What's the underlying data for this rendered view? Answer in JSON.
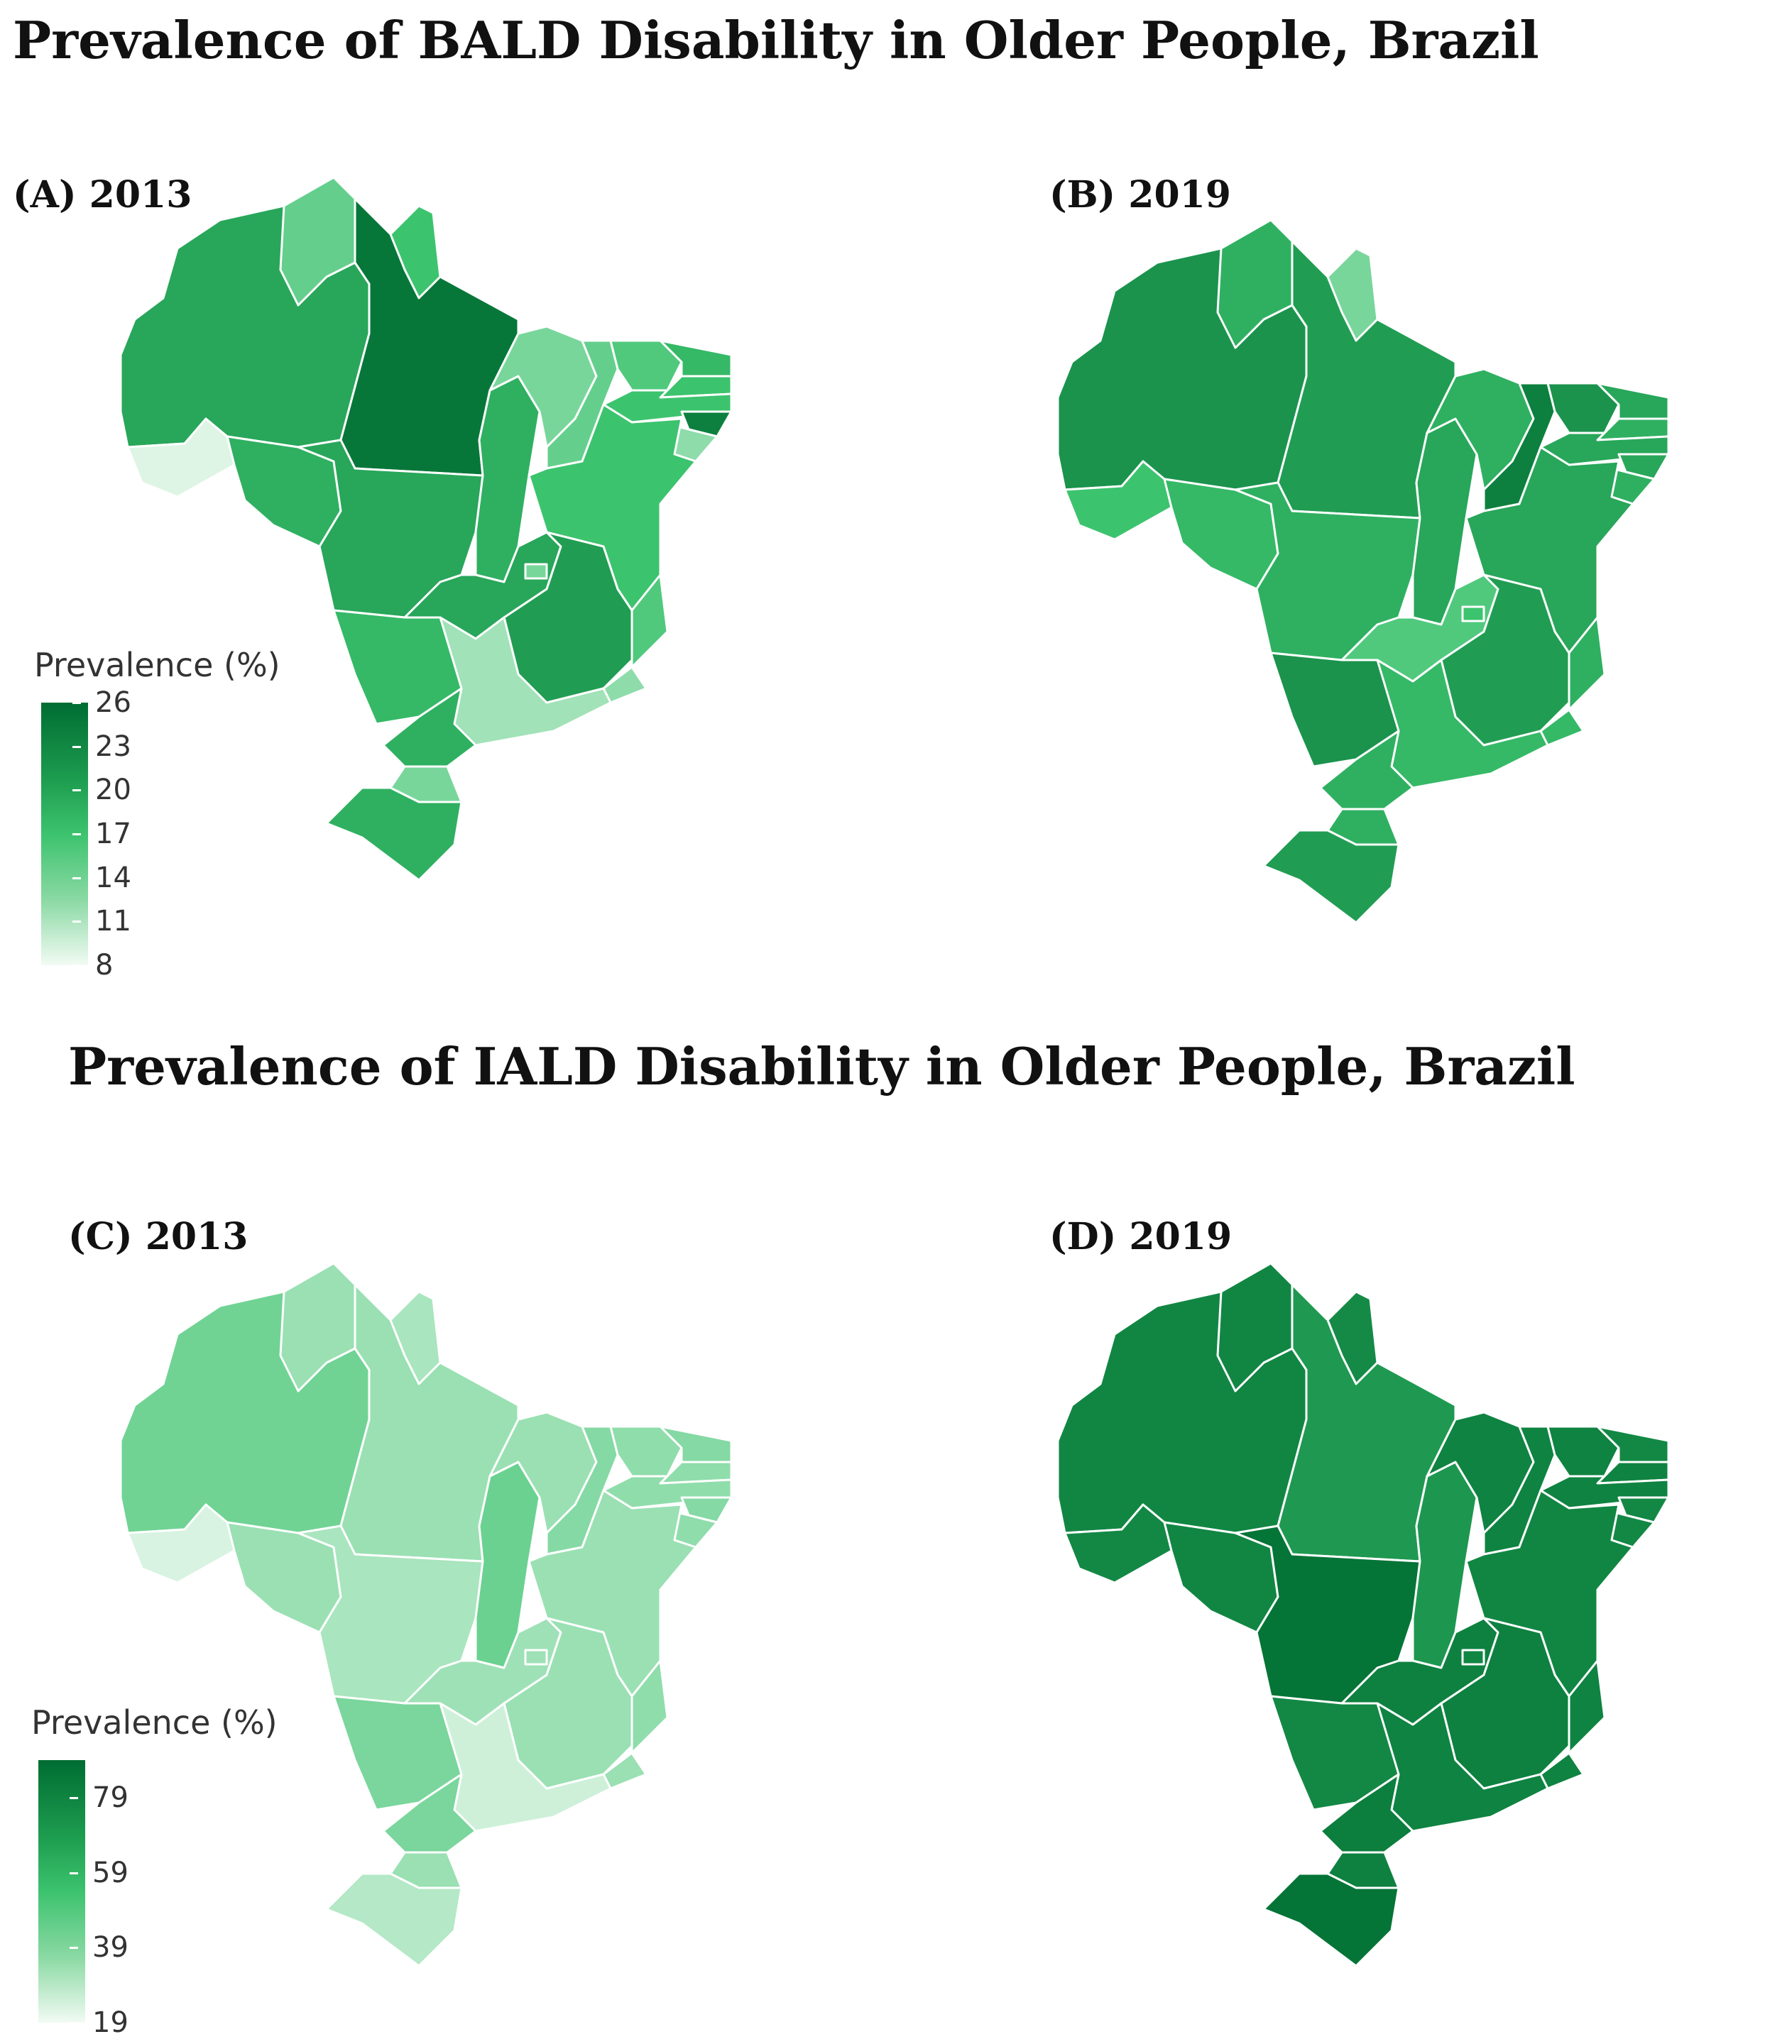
{
  "titles": {
    "bald": "Prevalence of BALD Disability in Older People, Brazil",
    "iald": "Prevalence of IALD Disability in Older People, Brazil"
  },
  "panels": {
    "a": {
      "label": "(A) 2013"
    },
    "b": {
      "label": "(B) 2019"
    },
    "c": {
      "label": "(C) 2013"
    },
    "d": {
      "label": "(D) 2019"
    }
  },
  "legend_bald": {
    "title": "Prevalence (%)",
    "ticks": [
      "26",
      "23",
      "20",
      "17",
      "14",
      "11",
      "8"
    ],
    "range": [
      8,
      26
    ],
    "colors": {
      "low": "#f2fbf4",
      "mid": "#3cc36e",
      "high": "#006d32"
    }
  },
  "legend_iald": {
    "title": "Prevalence (%)",
    "ticks": [
      "79",
      "59",
      "39",
      "19"
    ],
    "range": [
      19,
      89
    ],
    "colors": {
      "low": "#f2fbf4",
      "mid": "#3cc36e",
      "high": "#006d32"
    }
  },
  "chart_data": [
    {
      "type": "choropleth",
      "title": "Prevalence of BALD Disability in Older People, Brazil",
      "panel": "(A) 2013",
      "unit": "Prevalence (%)",
      "regions": {
        "AC": 9,
        "AM": 20,
        "RR": 15,
        "PA": 25,
        "AP": 17,
        "RO": 19,
        "MT": 20,
        "TO": 19,
        "MA": 14,
        "PI": 15,
        "CE": 16,
        "RN": 18,
        "PB": 17,
        "PE": 17,
        "AL": 24,
        "SE": 13,
        "BA": 17,
        "GO": 20,
        "DF": 14,
        "MS": 18,
        "MG": 21,
        "ES": 16,
        "RJ": 13,
        "SP": 12,
        "PR": 19,
        "SC": 14,
        "RS": 19
      }
    },
    {
      "type": "choropleth",
      "title": "Prevalence of BALD Disability in Older People, Brazil",
      "panel": "(B) 2019",
      "unit": "Prevalence (%)",
      "regions": {
        "AC": 17,
        "AM": 22,
        "RR": 19,
        "PA": 21,
        "AP": 14,
        "RO": 18,
        "MT": 19,
        "TO": 20,
        "MA": 19,
        "PI": 24,
        "CE": 22,
        "RN": 20,
        "PB": 19,
        "PE": 20,
        "AL": 20,
        "SE": 19,
        "BA": 20,
        "GO": 16,
        "DF": 17,
        "MS": 22,
        "MG": 21,
        "ES": 19,
        "RJ": 18,
        "SP": 18,
        "PR": 19,
        "SC": 19,
        "RS": 21
      }
    },
    {
      "type": "choropleth",
      "title": "Prevalence of IALD Disability in Older People, Brazil",
      "panel": "(C) 2013",
      "unit": "Prevalence (%)",
      "regions": {
        "AC": 24,
        "AM": 44,
        "RR": 36,
        "PA": 36,
        "AP": 33,
        "RO": 36,
        "MT": 33,
        "TO": 45,
        "MA": 36,
        "PI": 40,
        "CE": 38,
        "RN": 40,
        "PB": 38,
        "PE": 38,
        "AL": 40,
        "SE": 38,
        "BA": 36,
        "GO": 35,
        "DF": 35,
        "MS": 42,
        "MG": 36,
        "ES": 38,
        "RJ": 36,
        "SP": 26,
        "PR": 42,
        "SC": 36,
        "RS": 31
      }
    },
    {
      "type": "choropleth",
      "title": "Prevalence of IALD Disability in Older People, Brazil",
      "panel": "(D) 2019",
      "unit": "Prevalence (%)",
      "regions": {
        "AC": 78,
        "AM": 79,
        "RR": 79,
        "PA": 71,
        "AP": 77,
        "RO": 79,
        "MT": 86,
        "TO": 72,
        "MA": 80,
        "PI": 80,
        "CE": 80,
        "RN": 78,
        "PB": 80,
        "PE": 80,
        "AL": 78,
        "SE": 78,
        "BA": 79,
        "GO": 81,
        "DF": 79,
        "MS": 78,
        "MG": 81,
        "ES": 80,
        "RJ": 80,
        "SP": 80,
        "PR": 82,
        "SC": 81,
        "RS": 86
      }
    }
  ]
}
